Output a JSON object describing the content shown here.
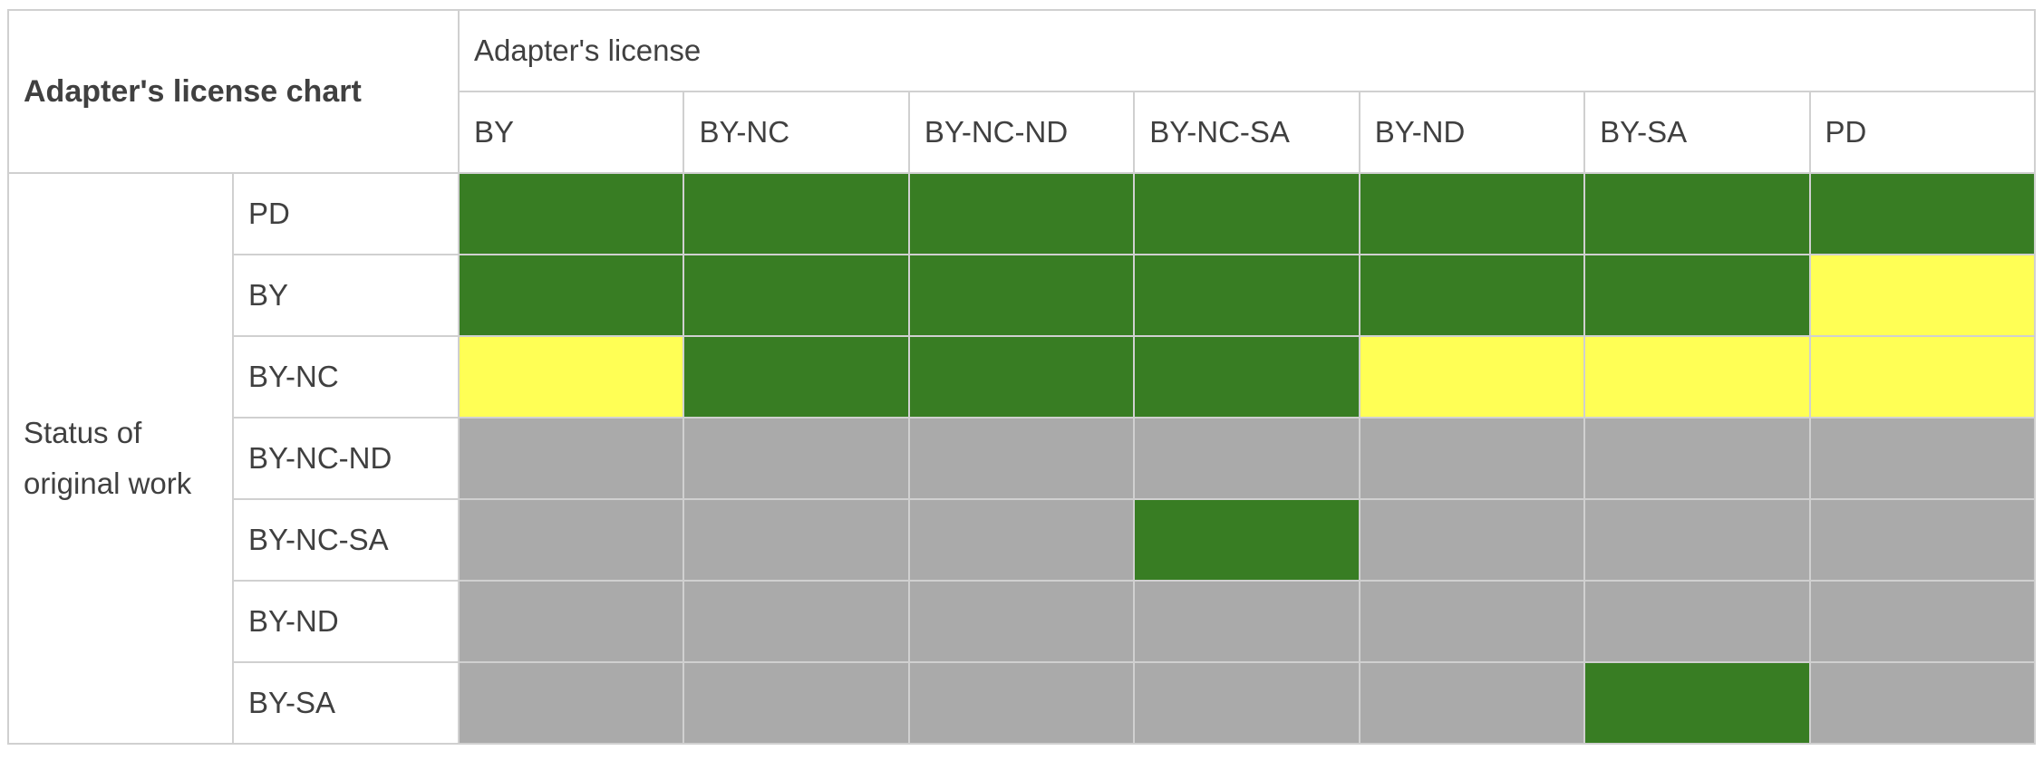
{
  "title": "Adapter's license chart",
  "column_group_label": "Adapter's license",
  "row_group_label": "Status of original work",
  "columns": [
    "BY",
    "BY-NC",
    "BY-NC-ND",
    "BY-NC-SA",
    "BY-ND",
    "BY-SA",
    "PD"
  ],
  "rows": [
    "PD",
    "BY",
    "BY-NC",
    "BY-NC-ND",
    "BY-NC-SA",
    "BY-ND",
    "BY-SA"
  ],
  "legend_colors": {
    "compatible": "#387d23",
    "partial": "#ffff55",
    "incompatible": "#aaaaaa",
    "border": "#d0d0d0"
  },
  "chart_data": {
    "type": "table",
    "title": "Adapter's license chart",
    "xlabel": "Adapter's license",
    "ylabel": "Status of original work",
    "columns": [
      "BY",
      "BY-NC",
      "BY-NC-ND",
      "BY-NC-SA",
      "BY-ND",
      "BY-SA",
      "PD"
    ],
    "rows": [
      "PD",
      "BY",
      "BY-NC",
      "BY-NC-ND",
      "BY-NC-SA",
      "BY-ND",
      "BY-SA"
    ],
    "cells": [
      [
        "green",
        "green",
        "green",
        "green",
        "green",
        "green",
        "green"
      ],
      [
        "green",
        "green",
        "green",
        "green",
        "green",
        "green",
        "yellow"
      ],
      [
        "yellow",
        "green",
        "green",
        "green",
        "yellow",
        "yellow",
        "yellow"
      ],
      [
        "gray",
        "gray",
        "gray",
        "gray",
        "gray",
        "gray",
        "gray"
      ],
      [
        "gray",
        "gray",
        "gray",
        "green",
        "gray",
        "gray",
        "gray"
      ],
      [
        "gray",
        "gray",
        "gray",
        "gray",
        "gray",
        "gray",
        "gray"
      ],
      [
        "gray",
        "gray",
        "gray",
        "gray",
        "gray",
        "green",
        "gray"
      ]
    ]
  }
}
